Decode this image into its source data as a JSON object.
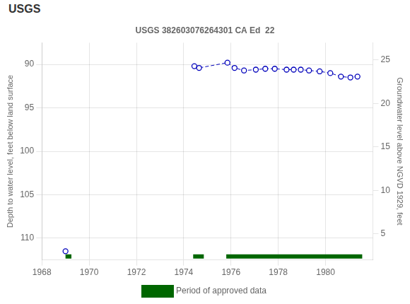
{
  "chart_data": {
    "type": "line",
    "title": "USGS 382603076264301 CA Ed  22",
    "annotations": [
      "USGS"
    ],
    "ylabel": "Depth to water level, feet below land surface",
    "y2label": "Groundwater level above NGVD 1929, feet",
    "xlim": [
      1968,
      1982
    ],
    "xticks": [
      1968,
      1970,
      1972,
      1974,
      1976,
      1978,
      1980
    ],
    "ylim": [
      112.5,
      87.5
    ],
    "yticks": [
      90,
      95,
      100,
      105,
      110
    ],
    "y2lim": [
      2.0,
      27.0
    ],
    "y2ticks": [
      5,
      10,
      15,
      20,
      25
    ],
    "grid": true,
    "legend": "bottom",
    "series": [
      {
        "color": "#0000bb",
        "marker": "circle",
        "line_style": "none",
        "x": [
          1969.0
        ],
        "values": [
          111.5
        ]
      },
      {
        "color": "#0000bb",
        "marker": "circle",
        "line_style": "dashed",
        "x": [
          1974.45,
          1974.65,
          1975.85,
          1976.15,
          1976.55,
          1977.05,
          1977.45,
          1977.85,
          1978.35,
          1978.65,
          1978.95,
          1979.3,
          1979.75,
          1980.2,
          1980.65,
          1981.05,
          1981.35
        ],
        "values": [
          90.2,
          90.4,
          89.8,
          90.4,
          90.7,
          90.6,
          90.5,
          90.5,
          90.6,
          90.6,
          90.6,
          90.7,
          90.8,
          91.0,
          91.4,
          91.5,
          91.4
        ]
      },
      {
        "name": "Period of approved data",
        "type": "range",
        "color": "#006600",
        "y": 112.1,
        "ranges": [
          [
            1969.0,
            1969.25
          ],
          [
            1974.4,
            1974.85
          ],
          [
            1975.8,
            1981.55
          ]
        ]
      }
    ]
  }
}
